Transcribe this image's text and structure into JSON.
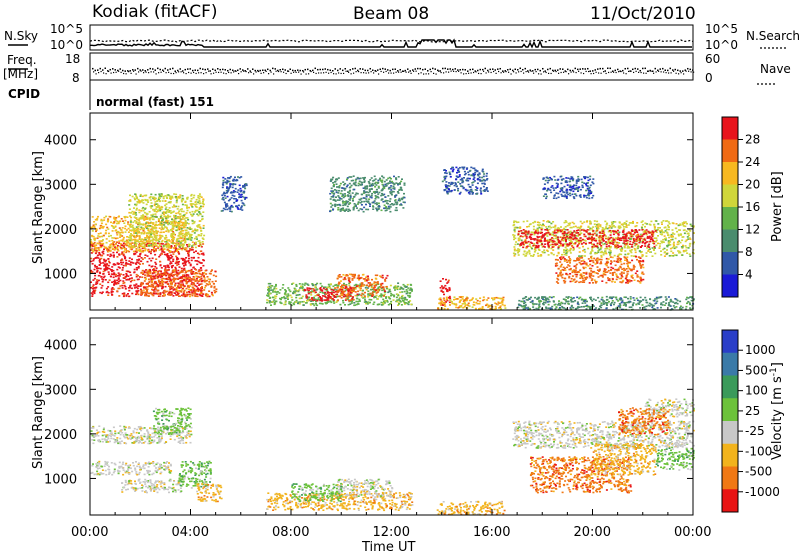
{
  "header": {
    "station": "Kodiak (fitACF)",
    "beam": "Beam 08",
    "date": "11/Oct/2010"
  },
  "top_panels": {
    "nsky_label": "N.Sky",
    "nsearch_label": "N.Search",
    "freq_label": "Freq.",
    "freq_unit": "[MHz]",
    "nave_label": "Nave",
    "cpid_label": "CPID",
    "cpid_value": "normal (fast) 151",
    "noise_ticks": [
      "10^5",
      "10^0"
    ],
    "noise_right_ticks": [
      "10^5",
      "10^0"
    ],
    "freq_ticks": [
      "18",
      "8"
    ],
    "nave_ticks": [
      "60",
      "0"
    ]
  },
  "chart_data": [
    {
      "type": "heatmap",
      "title": "Power",
      "xlabel": "",
      "ylabel": "Slant Range [km]",
      "yticks": [
        "4000",
        "3000",
        "2000",
        "1000"
      ],
      "ylim": [
        180,
        4600
      ],
      "colorbar_label": "Power [dB]",
      "colorbar_ticks": [
        "28",
        "24",
        "20",
        "16",
        "12",
        "8",
        "4"
      ],
      "colorbar_colors": [
        "#e8141c",
        "#f06a14",
        "#f7b820",
        "#cfd63a",
        "#62b24a",
        "#4a8c6e",
        "#3058a8",
        "#1a1ad6"
      ],
      "regions": [
        {
          "t0": 0.0,
          "t1": 4.5,
          "r0": 500,
          "r1": 1700,
          "level": 0
        },
        {
          "t0": 0.0,
          "t1": 3.8,
          "r0": 1500,
          "r1": 2300,
          "level": 2
        },
        {
          "t0": 1.5,
          "t1": 4.5,
          "r0": 1600,
          "r1": 2800,
          "level": 3
        },
        {
          "t0": 2.0,
          "t1": 5.0,
          "r0": 500,
          "r1": 1100,
          "level": 1
        },
        {
          "t0": 5.2,
          "t1": 6.2,
          "r0": 2400,
          "r1": 3200,
          "level": 6
        },
        {
          "t0": 7.0,
          "t1": 12.8,
          "r0": 300,
          "r1": 800,
          "level": 4
        },
        {
          "t0": 8.5,
          "t1": 10.5,
          "r0": 400,
          "r1": 700,
          "level": 0
        },
        {
          "t0": 9.8,
          "t1": 11.8,
          "r0": 500,
          "r1": 1000,
          "level": 1
        },
        {
          "t0": 9.5,
          "t1": 12.5,
          "r0": 2400,
          "r1": 3200,
          "level": 5
        },
        {
          "t0": 13.9,
          "t1": 14.3,
          "r0": 300,
          "r1": 900,
          "level": 0
        },
        {
          "t0": 13.8,
          "t1": 16.5,
          "r0": 200,
          "r1": 500,
          "level": 2
        },
        {
          "t0": 14.0,
          "t1": 15.8,
          "r0": 2800,
          "r1": 3400,
          "level": 6
        },
        {
          "t0": 16.8,
          "t1": 24.0,
          "r0": 1400,
          "r1": 2200,
          "level": 3
        },
        {
          "t0": 17.0,
          "t1": 22.5,
          "r0": 1600,
          "r1": 2000,
          "level": 0
        },
        {
          "t0": 18.5,
          "t1": 22.0,
          "r0": 800,
          "r1": 1400,
          "level": 1
        },
        {
          "t0": 17.0,
          "t1": 24.0,
          "r0": 200,
          "r1": 500,
          "level": 5
        },
        {
          "t0": 18.0,
          "t1": 20.0,
          "r0": 2700,
          "r1": 3200,
          "level": 6
        }
      ]
    },
    {
      "type": "heatmap",
      "title": "Velocity",
      "xlabel": "Time UT",
      "ylabel": "Slant Range [km]",
      "yticks": [
        "4000",
        "3000",
        "2000",
        "1000"
      ],
      "ylim": [
        180,
        4600
      ],
      "xticks": [
        "00:00",
        "04:00",
        "08:00",
        "12:00",
        "16:00",
        "20:00",
        "00:00"
      ],
      "xlim": [
        0,
        24
      ],
      "colorbar_label": "Velocity [m s",
      "colorbar_sup": "-1",
      "colorbar_ticks": [
        "1000",
        "500",
        "100",
        "25",
        "-25",
        "-100",
        "-500",
        "-1000"
      ],
      "colorbar_colors": [
        "#2a3ec8",
        "#3a7aa8",
        "#3a9a5a",
        "#6cc23a",
        "#c8c8c8",
        "#f2b31c",
        "#f07814",
        "#e81414"
      ],
      "regions": [
        {
          "t0": 0.0,
          "t1": 4.0,
          "r0": 1800,
          "r1": 2200,
          "level": 4
        },
        {
          "t0": 0.0,
          "t1": 3.2,
          "r0": 1100,
          "r1": 1400,
          "level": 4
        },
        {
          "t0": 1.2,
          "t1": 3.6,
          "r0": 700,
          "r1": 1000,
          "level": 4
        },
        {
          "t0": 3.5,
          "t1": 4.8,
          "r0": 800,
          "r1": 1400,
          "level": 3
        },
        {
          "t0": 4.2,
          "t1": 5.2,
          "r0": 500,
          "r1": 900,
          "level": 5
        },
        {
          "t0": 2.5,
          "t1": 4.0,
          "r0": 2000,
          "r1": 2600,
          "level": 3
        },
        {
          "t0": 7.0,
          "t1": 12.8,
          "r0": 300,
          "r1": 700,
          "level": 5
        },
        {
          "t0": 9.8,
          "t1": 12.0,
          "r0": 600,
          "r1": 1000,
          "level": 4
        },
        {
          "t0": 8.0,
          "t1": 10.0,
          "r0": 500,
          "r1": 900,
          "level": 3
        },
        {
          "t0": 13.8,
          "t1": 16.5,
          "r0": 200,
          "r1": 500,
          "level": 5
        },
        {
          "t0": 16.8,
          "t1": 24.0,
          "r0": 1700,
          "r1": 2300,
          "level": 4
        },
        {
          "t0": 17.5,
          "t1": 21.5,
          "r0": 700,
          "r1": 1500,
          "level": 6
        },
        {
          "t0": 20.0,
          "t1": 22.5,
          "r0": 1100,
          "r1": 1800,
          "level": 5
        },
        {
          "t0": 22.0,
          "t1": 24.0,
          "r0": 2400,
          "r1": 2800,
          "level": 4
        },
        {
          "t0": 21.0,
          "t1": 23.0,
          "r0": 2000,
          "r1": 2600,
          "level": 6
        },
        {
          "t0": 22.5,
          "t1": 24.0,
          "r0": 1200,
          "r1": 1700,
          "level": 3
        }
      ]
    }
  ]
}
